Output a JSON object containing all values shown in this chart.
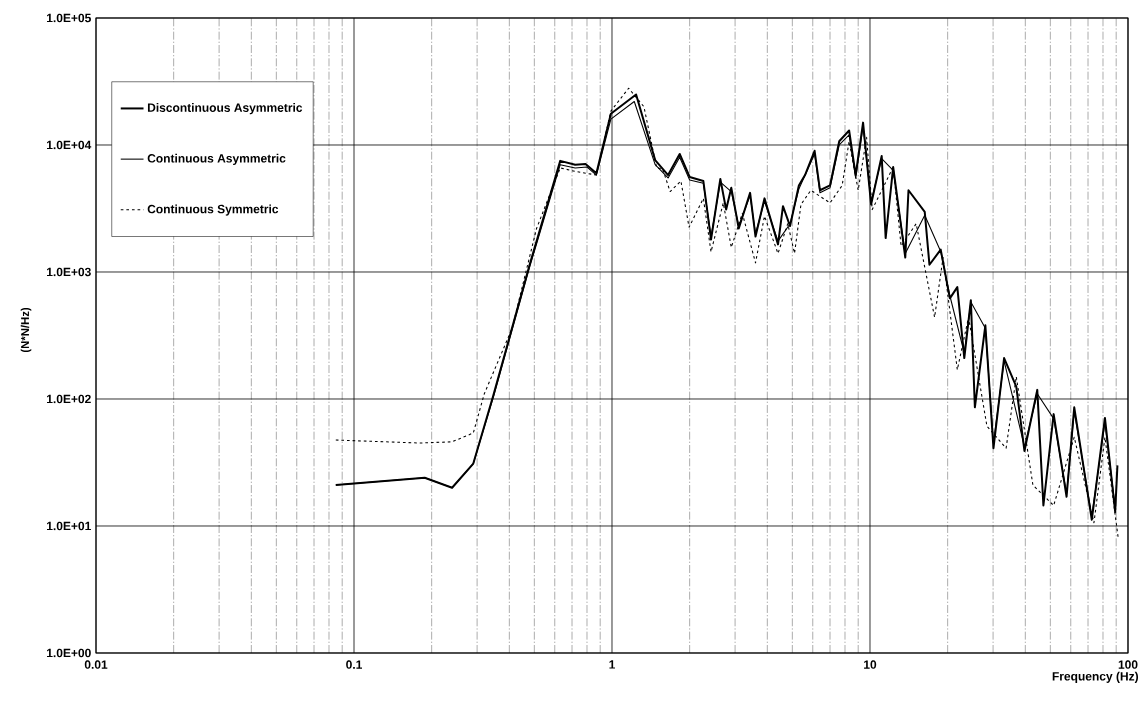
{
  "chart_data": {
    "type": "line",
    "xlabel": "Frequency (Hz)",
    "ylabel": "(N*N/Hz)",
    "log": "xy",
    "grid": true,
    "legend": "top left",
    "xlim": [
      0.01,
      100
    ],
    "ylim": [
      1,
      100000
    ],
    "xticks": [
      0.01,
      0.1,
      1,
      10,
      100
    ],
    "yticks": [
      {
        "value": 1,
        "label": "1.0E+00"
      },
      {
        "value": 10,
        "label": "1.0E+01"
      },
      {
        "value": 100,
        "label": "1.0E+02"
      },
      {
        "value": 1000,
        "label": "1.0E+03"
      },
      {
        "value": 10000,
        "label": "1.0E+04"
      },
      {
        "value": 100000,
        "label": "1.0E+05"
      }
    ],
    "series": [
      {
        "name": "Discontinuous Asymmetric",
        "color": "#000000",
        "line_style": "solid",
        "x": [
          0.085,
          0.188,
          0.24,
          0.29,
          0.346,
          0.48,
          0.63,
          0.72,
          0.79,
          0.87,
          0.99,
          1.24,
          1.47,
          1.65,
          1.83,
          2.0,
          2.26,
          2.42,
          2.63,
          2.77,
          2.9,
          3.1,
          3.43,
          3.6,
          3.9,
          4.4,
          4.6,
          4.9,
          5.3,
          5.6,
          6.1,
          6.4,
          7.0,
          7.6,
          8.3,
          8.8,
          9.4,
          10.1,
          11.1,
          11.5,
          12.3,
          13.7,
          14.1,
          16.3,
          17.0,
          18.8,
          20.4,
          21.8,
          23.2,
          24.6,
          25.5,
          28.0,
          30.1,
          33.1,
          36.9,
          39.7,
          44.5,
          47.0,
          51.5,
          57.8,
          61.9,
          72.4,
          81.4,
          89.2,
          91
        ],
        "values": [
          21,
          24,
          20,
          31,
          105,
          1150,
          7500,
          7000,
          7100,
          6000,
          17600,
          25000,
          7600,
          5800,
          8500,
          5600,
          5200,
          1800,
          5400,
          3100,
          4600,
          2200,
          4200,
          1900,
          3800,
          1650,
          3300,
          2300,
          4800,
          5800,
          9000,
          4400,
          4800,
          10700,
          13000,
          5800,
          15000,
          3400,
          8200,
          1850,
          6700,
          1300,
          4400,
          2970,
          1140,
          1500,
          620,
          760,
          210,
          600,
          86,
          380,
          41,
          210,
          125,
          39,
          118,
          14.5,
          76,
          17,
          86,
          11.2,
          71,
          12.9,
          30
        ]
      },
      {
        "name": "Continuous Asymmetric",
        "color": "#000000",
        "line_style": "solid",
        "x": [
          0.085,
          0.188,
          0.24,
          0.29,
          0.35,
          0.48,
          0.63,
          0.72,
          0.8,
          0.87,
          0.99,
          1.22,
          1.47,
          1.65,
          1.83,
          2.0,
          2.26,
          2.42,
          2.63,
          2.9,
          3.1,
          3.43,
          3.6,
          3.9,
          4.4,
          4.9,
          5.3,
          6.1,
          6.4,
          7.0,
          7.6,
          8.3,
          8.8,
          9.4,
          10.1,
          11.1,
          12.3,
          13.7,
          16.3,
          18.8,
          20.4,
          23.2,
          24.6,
          28.0,
          30.1,
          33.1,
          39.7,
          44.5,
          51.5,
          57.8,
          61.9,
          72.4,
          81.4,
          89.2
        ],
        "values": [
          21,
          24,
          20,
          31,
          110,
          1100,
          7000,
          6600,
          6700,
          5800,
          16000,
          22000,
          7000,
          5500,
          8000,
          5300,
          5000,
          1900,
          5100,
          4300,
          2300,
          4000,
          2000,
          3600,
          1750,
          2400,
          4500,
          8500,
          4200,
          4600,
          10000,
          12000,
          5500,
          14000,
          3600,
          7800,
          6300,
          1400,
          2800,
          1450,
          650,
          230,
          580,
          360,
          45,
          200,
          42,
          110,
          70,
          18,
          80,
          12,
          65,
          14
        ]
      },
      {
        "name": "Continuous Symmetric",
        "color": "#000000",
        "line_style": "dotted",
        "x": [
          0.085,
          0.18,
          0.24,
          0.29,
          0.32,
          0.41,
          0.51,
          0.63,
          0.72,
          0.87,
          0.99,
          1.16,
          1.33,
          1.49,
          1.57,
          1.68,
          1.85,
          1.99,
          2.26,
          2.42,
          2.7,
          2.9,
          3.2,
          3.6,
          3.9,
          4.4,
          4.8,
          5.1,
          5.4,
          5.9,
          7.0,
          7.8,
          8.3,
          9.0,
          9.7,
          10.2,
          12.3,
          13.2,
          15.1,
          17.8,
          19.2,
          21.8,
          24.1,
          28.4,
          33.7,
          36.9,
          42.8,
          51.5,
          61.9,
          73.8,
          81.4,
          91.6
        ],
        "values": [
          47.5,
          45,
          46,
          54,
          110,
          360,
          2200,
          6600,
          6200,
          5800,
          18500,
          28000,
          20000,
          6600,
          6500,
          4300,
          5200,
          2250,
          3800,
          1440,
          3500,
          1560,
          2900,
          1180,
          2750,
          1400,
          2400,
          1400,
          3400,
          4400,
          3500,
          4800,
          10700,
          4400,
          11500,
          3100,
          6700,
          1600,
          2400,
          440,
          1300,
          170,
          440,
          61,
          41,
          150,
          21,
          14.5,
          50,
          10.6,
          50,
          8.1
        ]
      }
    ]
  }
}
